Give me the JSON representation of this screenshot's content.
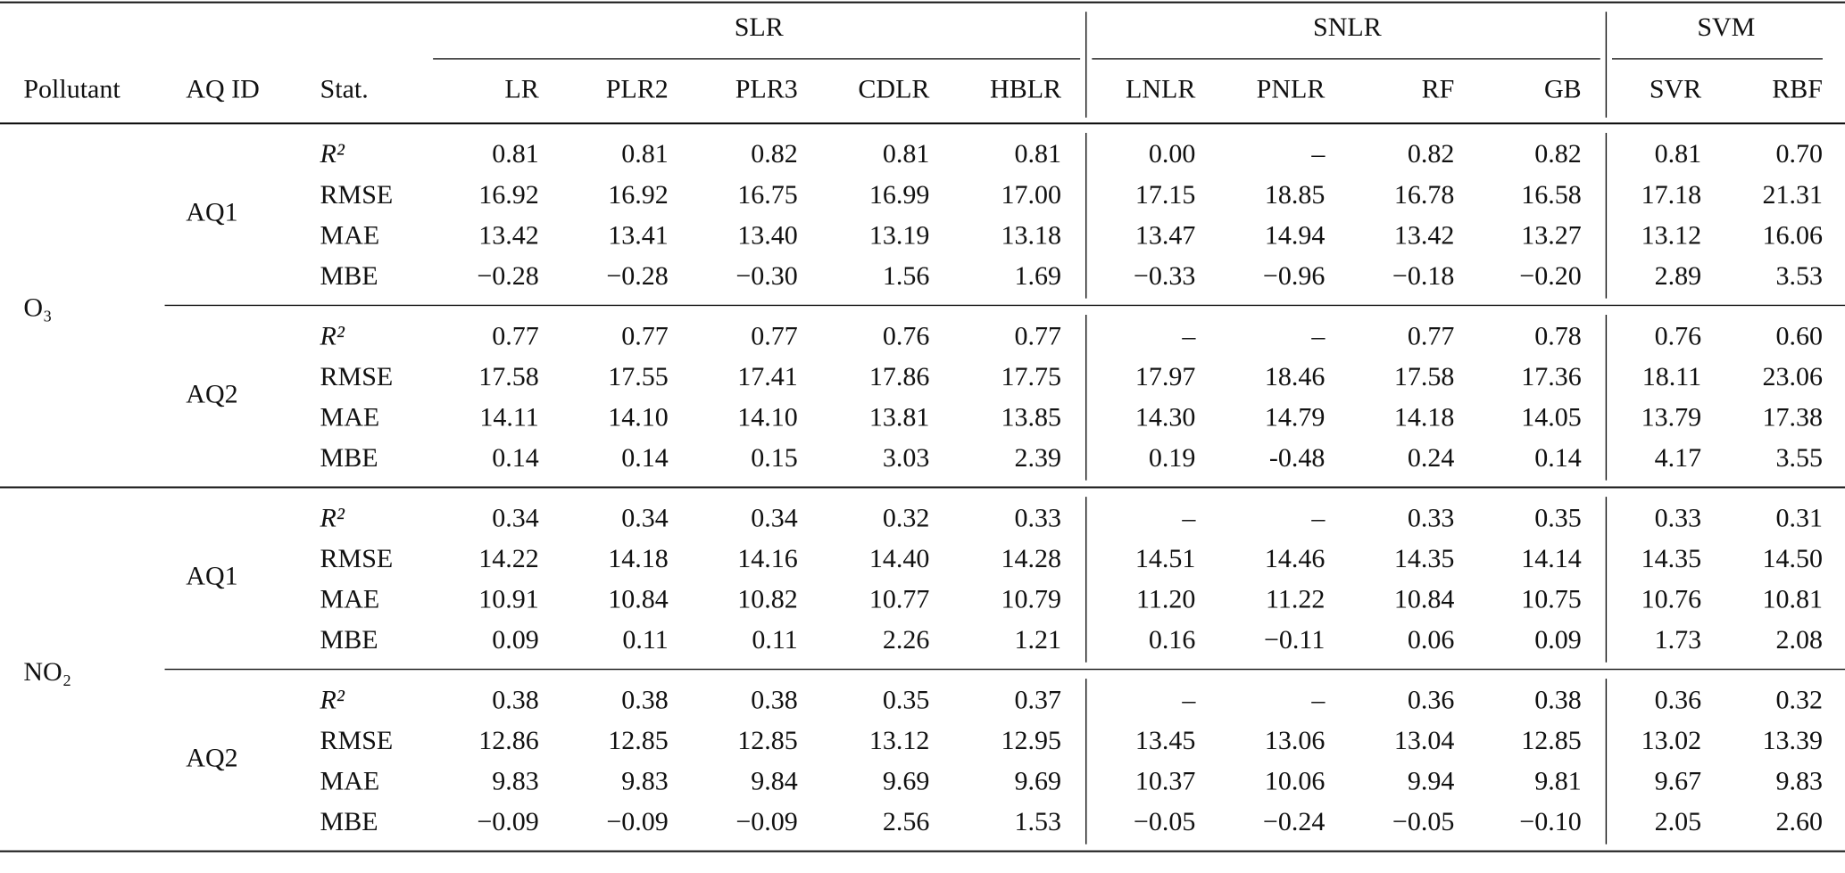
{
  "table": {
    "groups": [
      {
        "label": "SLR",
        "span": [
          3,
          7
        ]
      },
      {
        "label": "SNLR",
        "span": [
          8,
          11
        ]
      },
      {
        "label": "SVM",
        "span": [
          12,
          13
        ]
      }
    ],
    "columns": [
      "Pollutant",
      "AQ ID",
      "Stat.",
      "LR",
      "PLR2",
      "PLR3",
      "CDLR",
      "HBLR",
      "LNLR",
      "PNLR",
      "RF",
      "GB",
      "SVR",
      "RBF"
    ],
    "blocks": [
      {
        "pollutant": "O₃",
        "subblocks": [
          {
            "aq_id": "AQ1",
            "rows": [
              {
                "stat": "R²",
                "values": [
                  "0.81",
                  "0.81",
                  "0.82",
                  "0.81",
                  "0.81",
                  "0.00",
                  "–",
                  "0.82",
                  "0.82",
                  "0.81",
                  "0.70"
                ]
              },
              {
                "stat": "RMSE",
                "values": [
                  "16.92",
                  "16.92",
                  "16.75",
                  "16.99",
                  "17.00",
                  "17.15",
                  "18.85",
                  "16.78",
                  "16.58",
                  "17.18",
                  "21.31"
                ]
              },
              {
                "stat": "MAE",
                "values": [
                  "13.42",
                  "13.41",
                  "13.40",
                  "13.19",
                  "13.18",
                  "13.47",
                  "14.94",
                  "13.42",
                  "13.27",
                  "13.12",
                  "16.06"
                ]
              },
              {
                "stat": "MBE",
                "values": [
                  "−0.28",
                  "−0.28",
                  "−0.30",
                  "1.56",
                  "1.69",
                  "−0.33",
                  "−0.96",
                  "−0.18",
                  "−0.20",
                  "2.89",
                  "3.53"
                ]
              }
            ]
          },
          {
            "aq_id": "AQ2",
            "rows": [
              {
                "stat": "R²",
                "values": [
                  "0.77",
                  "0.77",
                  "0.77",
                  "0.76",
                  "0.77",
                  "–",
                  "–",
                  "0.77",
                  "0.78",
                  "0.76",
                  "0.60"
                ]
              },
              {
                "stat": "RMSE",
                "values": [
                  "17.58",
                  "17.55",
                  "17.41",
                  "17.86",
                  "17.75",
                  "17.97",
                  "18.46",
                  "17.58",
                  "17.36",
                  "18.11",
                  "23.06"
                ]
              },
              {
                "stat": "MAE",
                "values": [
                  "14.11",
                  "14.10",
                  "14.10",
                  "13.81",
                  "13.85",
                  "14.30",
                  "14.79",
                  "14.18",
                  "14.05",
                  "13.79",
                  "17.38"
                ]
              },
              {
                "stat": "MBE",
                "values": [
                  "0.14",
                  "0.14",
                  "0.15",
                  "3.03",
                  "2.39",
                  "0.19",
                  "-0.48",
                  "0.24",
                  "0.14",
                  "4.17",
                  "3.55"
                ]
              }
            ]
          }
        ]
      },
      {
        "pollutant": "NO₂",
        "subblocks": [
          {
            "aq_id": "AQ1",
            "rows": [
              {
                "stat": "R²",
                "values": [
                  "0.34",
                  "0.34",
                  "0.34",
                  "0.32",
                  "0.33",
                  "–",
                  "–",
                  "0.33",
                  "0.35",
                  "0.33",
                  "0.31"
                ]
              },
              {
                "stat": "RMSE",
                "values": [
                  "14.22",
                  "14.18",
                  "14.16",
                  "14.40",
                  "14.28",
                  "14.51",
                  "14.46",
                  "14.35",
                  "14.14",
                  "14.35",
                  "14.50"
                ]
              },
              {
                "stat": "MAE",
                "values": [
                  "10.91",
                  "10.84",
                  "10.82",
                  "10.77",
                  "10.79",
                  "11.20",
                  "11.22",
                  "10.84",
                  "10.75",
                  "10.76",
                  "10.81"
                ]
              },
              {
                "stat": "MBE",
                "values": [
                  "0.09",
                  "0.11",
                  "0.11",
                  "2.26",
                  "1.21",
                  "0.16",
                  "−0.11",
                  "0.06",
                  "0.09",
                  "1.73",
                  "2.08"
                ]
              }
            ]
          },
          {
            "aq_id": "AQ2",
            "rows": [
              {
                "stat": "R²",
                "values": [
                  "0.38",
                  "0.38",
                  "0.38",
                  "0.35",
                  "0.37",
                  "–",
                  "–",
                  "0.36",
                  "0.38",
                  "0.36",
                  "0.32"
                ]
              },
              {
                "stat": "RMSE",
                "values": [
                  "12.86",
                  "12.85",
                  "12.85",
                  "13.12",
                  "12.95",
                  "13.45",
                  "13.06",
                  "13.04",
                  "12.85",
                  "13.02",
                  "13.39"
                ]
              },
              {
                "stat": "MAE",
                "values": [
                  "9.83",
                  "9.83",
                  "9.84",
                  "9.69",
                  "9.69",
                  "10.37",
                  "10.06",
                  "9.94",
                  "9.81",
                  "9.67",
                  "9.83"
                ]
              },
              {
                "stat": "MBE",
                "values": [
                  "−0.09",
                  "−0.09",
                  "−0.09",
                  "2.56",
                  "1.53",
                  "−0.05",
                  "−0.24",
                  "−0.05",
                  "−0.10",
                  "2.05",
                  "2.60"
                ]
              }
            ]
          }
        ]
      }
    ]
  }
}
